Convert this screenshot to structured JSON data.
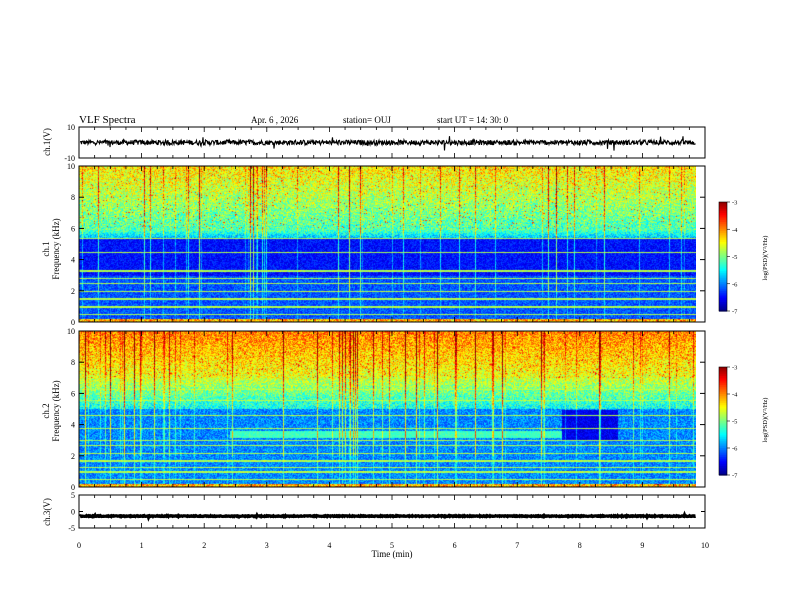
{
  "header": {
    "title": "VLF Spectra",
    "date": "Apr. 6 , 2026",
    "station": "station= OUJ",
    "start_ut": "start UT = 14: 30: 0"
  },
  "colors": {
    "colormap": [
      "#00007f",
      "#0000ff",
      "#007fff",
      "#00ffff",
      "#7fff7f",
      "#ffff00",
      "#ff7f00",
      "#ff0000",
      "#ffffff"
    ]
  },
  "chart_data": [
    {
      "type": "line",
      "name": "ch1-waveform",
      "ylabel": "ch.1(V)",
      "ylim": [
        -10,
        10
      ],
      "y_ticks": [
        "10",
        "-10"
      ],
      "level": 0
    },
    {
      "type": "heatmap",
      "name": "ch1-spectrogram",
      "ylabel": "Frequency (kHz)",
      "channel_label": "ch.1",
      "ylim": [
        0,
        10
      ],
      "y_ticks": [
        "10",
        "8",
        "6",
        "4",
        "2",
        "0"
      ],
      "colorbar": {
        "label": "log(PSD)(V²/Hz)",
        "range": [
          -7,
          -3
        ],
        "ticks": [
          "-3",
          "-4",
          "-5",
          "-6",
          "-7"
        ]
      },
      "features": {
        "noise_band_khz": [
          6,
          10
        ],
        "quiet_band_khz": [
          3,
          5.5
        ],
        "horizontal_lines_khz": [
          0.5,
          1.0,
          1.5,
          2.0,
          2.5,
          2.8,
          3.3,
          4.5,
          5.4
        ]
      }
    },
    {
      "type": "heatmap",
      "name": "ch2-spectrogram",
      "ylabel": "Frequency (kHz)",
      "channel_label": "ch.2",
      "ylim": [
        0,
        10
      ],
      "y_ticks": [
        "10",
        "8",
        "6",
        "4",
        "2",
        "0"
      ],
      "colorbar": {
        "label": "log(PSD)(V²/Hz)",
        "range": [
          -7,
          -3
        ],
        "ticks": [
          "-3",
          "-4",
          "-5",
          "-6",
          "-7"
        ]
      },
      "features": {
        "noise_band_khz": [
          7,
          10
        ],
        "emission_band_khz": [
          3.2,
          3.6
        ],
        "emission_time_min": [
          2.4,
          7.7
        ]
      }
    },
    {
      "type": "line",
      "name": "ch3-waveform",
      "ylabel": "ch.3(V)",
      "ylim": [
        -5,
        5
      ],
      "y_ticks": [
        "5",
        "0",
        "-5"
      ],
      "level": -1.4
    }
  ],
  "xaxis": {
    "label": "Time (min)",
    "range": [
      0,
      10
    ],
    "ticks": [
      "0",
      "1",
      "2",
      "3",
      "4",
      "5",
      "6",
      "7",
      "8",
      "9",
      "10"
    ],
    "data_end_min": 9.85
  }
}
